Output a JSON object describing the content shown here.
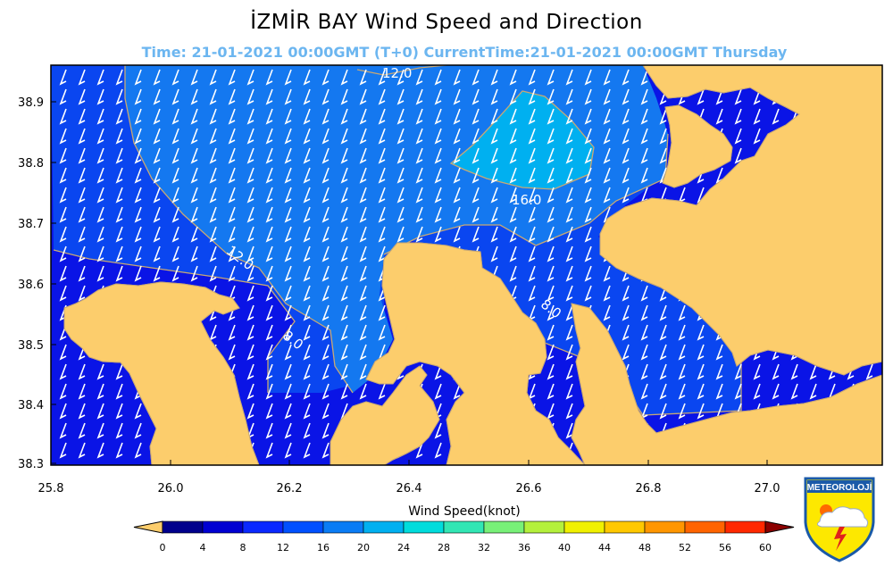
{
  "title": "İZMİR BAY  Wind Speed and Direction",
  "subtitle": "Time: 21-01-2021 00:00GMT (T+0)  CurrentTime:21-01-2021 00:00GMT Thursday",
  "map": {
    "lon_ticks": [
      "25.8",
      "26.0",
      "26.2",
      "26.4",
      "26.6",
      "26.8",
      "27.0"
    ],
    "lat_ticks": [
      "38.9",
      "38.8",
      "38.7",
      "38.6",
      "38.5",
      "38.4",
      "38.3"
    ],
    "contour_labels": [
      "12.0",
      "16.0",
      "12.0",
      "8.0",
      "8.0"
    ],
    "colors": {
      "land": "#fccd6c",
      "sea_dark": "#0a14e6",
      "sea_mid": "#0a46f0",
      "sea_light": "#1478f0",
      "sea_lightest": "#00b0f0",
      "contour": "#c8a874"
    }
  },
  "colorbar": {
    "label": "Wind Speed(knot)",
    "ticks": [
      "0",
      "4",
      "8",
      "12",
      "16",
      "20",
      "24",
      "28",
      "32",
      "36",
      "40",
      "44",
      "48",
      "52",
      "56",
      "60"
    ],
    "colors": [
      "#00008c",
      "#0000d2",
      "#0a28ff",
      "#0050ff",
      "#0a7cf5",
      "#00b0f0",
      "#00dcdc",
      "#32e6b4",
      "#78f078",
      "#b4f03c",
      "#f0f000",
      "#ffc800",
      "#ff9600",
      "#ff6400",
      "#ff2800",
      "#d20000",
      "#8c0000"
    ]
  },
  "logo": {
    "text": "METEOROLOJİ"
  }
}
